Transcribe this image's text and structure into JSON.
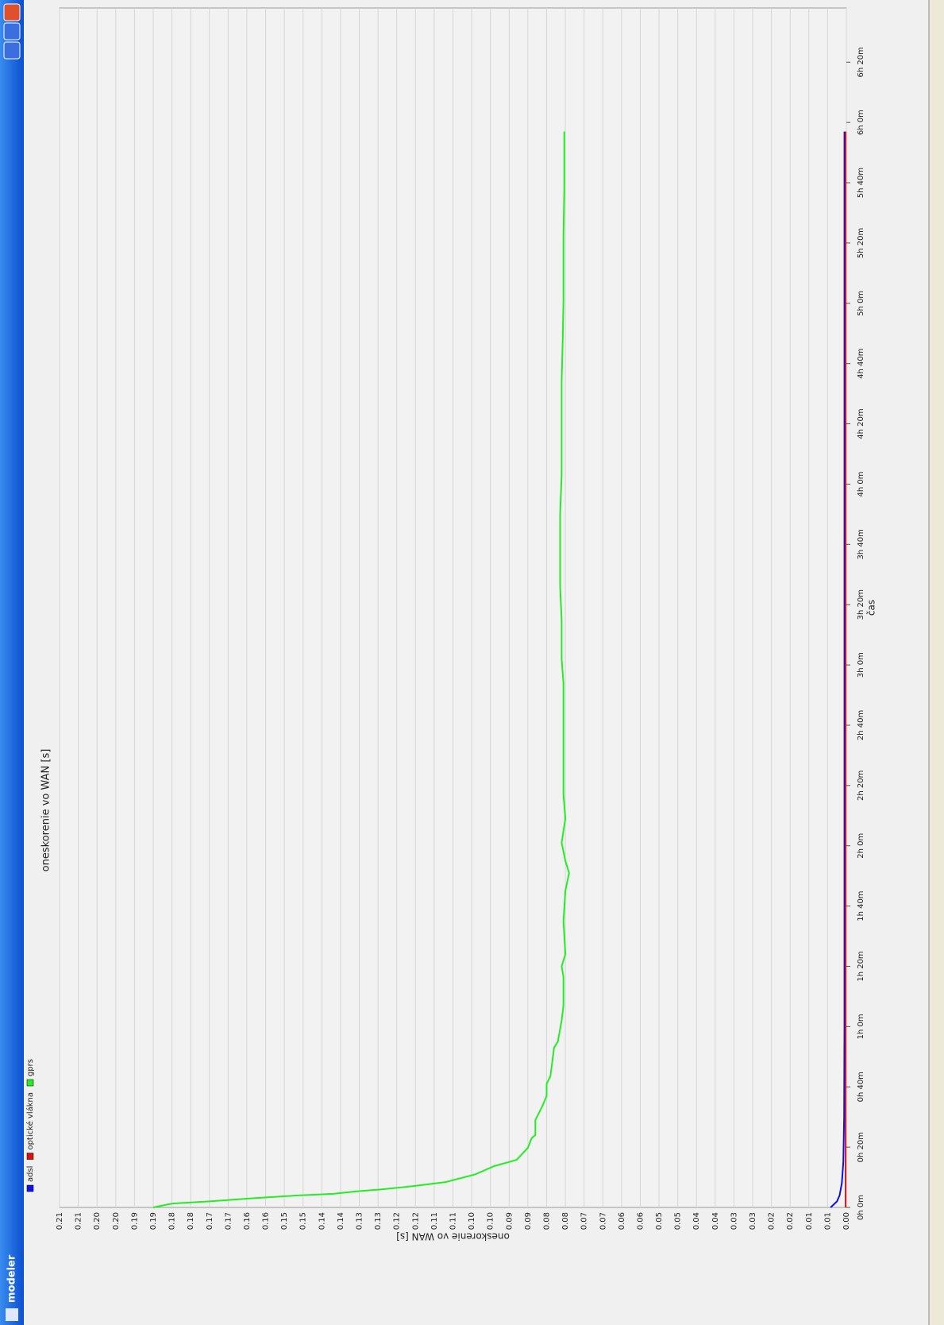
{
  "window": {
    "title": "modeler"
  },
  "chart_data": {
    "type": "line",
    "title": "oneskorenie vo WAN [s]",
    "xlabel": "čas",
    "ylabel": "oneskorenie vo WAN [s]",
    "xlim": [
      0,
      398
    ],
    "ylim": [
      0,
      0.21
    ],
    "grid": true,
    "xticks": [
      {
        "value": 0,
        "label": "0h 0m"
      },
      {
        "value": 20,
        "label": "0h 20m"
      },
      {
        "value": 40,
        "label": "0h 40m"
      },
      {
        "value": 60,
        "label": "1h 0m"
      },
      {
        "value": 80,
        "label": "1h 20m"
      },
      {
        "value": 100,
        "label": "1h 40m"
      },
      {
        "value": 120,
        "label": "2h 0m"
      },
      {
        "value": 140,
        "label": "2h 20m"
      },
      {
        "value": 160,
        "label": "2h 40m"
      },
      {
        "value": 180,
        "label": "3h 0m"
      },
      {
        "value": 200,
        "label": "3h 20m"
      },
      {
        "value": 220,
        "label": "3h 40m"
      },
      {
        "value": 240,
        "label": "4h 0m"
      },
      {
        "value": 260,
        "label": "4h 20m"
      },
      {
        "value": 280,
        "label": "4h 40m"
      },
      {
        "value": 300,
        "label": "5h 0m"
      },
      {
        "value": 320,
        "label": "5h 20m"
      },
      {
        "value": 340,
        "label": "5h 40m"
      },
      {
        "value": 360,
        "label": "6h 0m"
      },
      {
        "value": 380,
        "label": "6h 20m"
      }
    ],
    "yticks": [
      {
        "value": 0,
        "label": "0.00"
      },
      {
        "value": 0.005,
        "label": "0.01"
      },
      {
        "value": 0.01,
        "label": "0.01"
      },
      {
        "value": 0.015,
        "label": "0.02"
      },
      {
        "value": 0.02,
        "label": "0.02"
      },
      {
        "value": 0.025,
        "label": "0.03"
      },
      {
        "value": 0.03,
        "label": "0.03"
      },
      {
        "value": 0.035,
        "label": "0.04"
      },
      {
        "value": 0.04,
        "label": "0.04"
      },
      {
        "value": 0.045,
        "label": "0.05"
      },
      {
        "value": 0.05,
        "label": "0.05"
      },
      {
        "value": 0.055,
        "label": "0.06"
      },
      {
        "value": 0.06,
        "label": "0.06"
      },
      {
        "value": 0.065,
        "label": "0.07"
      },
      {
        "value": 0.07,
        "label": "0.07"
      },
      {
        "value": 0.075,
        "label": "0.08"
      },
      {
        "value": 0.08,
        "label": "0.08"
      },
      {
        "value": 0.085,
        "label": "0.09"
      },
      {
        "value": 0.09,
        "label": "0.09"
      },
      {
        "value": 0.095,
        "label": "0.10"
      },
      {
        "value": 0.1,
        "label": "0.10"
      },
      {
        "value": 0.105,
        "label": "0.11"
      },
      {
        "value": 0.11,
        "label": "0.11"
      },
      {
        "value": 0.115,
        "label": "0.12"
      },
      {
        "value": 0.12,
        "label": "0.12"
      },
      {
        "value": 0.125,
        "label": "0.13"
      },
      {
        "value": 0.13,
        "label": "0.13"
      },
      {
        "value": 0.135,
        "label": "0.14"
      },
      {
        "value": 0.14,
        "label": "0.14"
      },
      {
        "value": 0.145,
        "label": "0.15"
      },
      {
        "value": 0.15,
        "label": "0.15"
      },
      {
        "value": 0.155,
        "label": "0.16"
      },
      {
        "value": 0.16,
        "label": "0.16"
      },
      {
        "value": 0.165,
        "label": "0.17"
      },
      {
        "value": 0.17,
        "label": "0.17"
      },
      {
        "value": 0.175,
        "label": "0.18"
      },
      {
        "value": 0.18,
        "label": "0.18"
      },
      {
        "value": 0.185,
        "label": "0.19"
      },
      {
        "value": 0.19,
        "label": "0.19"
      },
      {
        "value": 0.195,
        "label": "0.20"
      },
      {
        "value": 0.2,
        "label": "0.20"
      },
      {
        "value": 0.205,
        "label": "0.21"
      },
      {
        "value": 0.21,
        "label": "0.21"
      }
    ],
    "series": [
      {
        "name": "adsl",
        "color": "#1010e0",
        "x": [
          0,
          2,
          4,
          8,
          15,
          30,
          60,
          357
        ],
        "values": [
          0.0042,
          0.0025,
          0.0018,
          0.0012,
          0.0008,
          0.0006,
          0.0005,
          0.0005
        ]
      },
      {
        "name": "optické vlákna",
        "color": "#e01010",
        "x": [
          0,
          357
        ],
        "values": [
          0.0002,
          0.0002
        ]
      },
      {
        "name": "gprs",
        "color": "#22ee22",
        "x": [
          0,
          1.3,
          2,
          3,
          4,
          4.5,
          5.3,
          6,
          7,
          8.4,
          11,
          13.7,
          15.8,
          19.8,
          23,
          24,
          29,
          34,
          37,
          41,
          43.5,
          53,
          55,
          62,
          67,
          76.5,
          80,
          84,
          95,
          105,
          111,
          115,
          121,
          129,
          137,
          153,
          174,
          182,
          190,
          195,
          206,
          230,
          243,
          259,
          274,
          288,
          301,
          322,
          338,
          357
        ],
        "values": [
          0.185,
          0.18,
          0.17,
          0.159,
          0.146,
          0.137,
          0.131,
          0.124,
          0.116,
          0.107,
          0.099,
          0.094,
          0.088,
          0.085,
          0.084,
          0.083,
          0.083,
          0.081,
          0.08,
          0.08,
          0.079,
          0.078,
          0.077,
          0.076,
          0.0755,
          0.0755,
          0.076,
          0.075,
          0.0755,
          0.075,
          0.074,
          0.075,
          0.076,
          0.075,
          0.0755,
          0.0755,
          0.0755,
          0.076,
          0.076,
          0.076,
          0.0764,
          0.0764,
          0.076,
          0.076,
          0.076,
          0.0757,
          0.0755,
          0.0755,
          0.0753,
          0.0753
        ]
      }
    ]
  }
}
